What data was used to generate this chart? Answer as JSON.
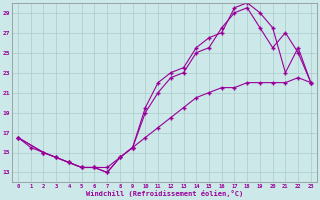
{
  "xlabel": "Windchill (Refroidissement éolien,°C)",
  "bg_color": "#cce8e8",
  "grid_color": "#aacccc",
  "line_color": "#990099",
  "xlim": [
    -0.5,
    23.5
  ],
  "ylim": [
    12,
    30
  ],
  "xticks": [
    0,
    1,
    2,
    3,
    4,
    5,
    6,
    7,
    8,
    9,
    10,
    11,
    12,
    13,
    14,
    15,
    16,
    17,
    18,
    19,
    20,
    21,
    22,
    23
  ],
  "yticks": [
    13,
    15,
    17,
    19,
    21,
    23,
    25,
    27,
    29
  ],
  "line1_x": [
    0,
    1,
    2,
    3,
    4,
    5,
    6,
    7,
    8,
    9,
    10,
    11,
    12,
    13,
    14,
    15,
    16,
    17,
    18,
    19,
    20,
    21,
    22,
    23
  ],
  "line1_y": [
    16.5,
    15.5,
    15.0,
    14.5,
    14.0,
    13.5,
    13.5,
    13.5,
    14.5,
    15.5,
    16.5,
    17.5,
    18.5,
    19.5,
    20.5,
    21.0,
    21.5,
    21.5,
    22.0,
    22.0,
    22.0,
    22.0,
    22.5,
    22.0
  ],
  "line2_x": [
    0,
    2,
    3,
    4,
    5,
    6,
    7,
    8,
    9,
    10,
    11,
    12,
    13,
    14,
    15,
    16,
    17,
    18,
    19,
    20,
    21,
    22,
    23
  ],
  "line2_y": [
    16.5,
    15.0,
    14.5,
    14.0,
    13.5,
    13.5,
    13.0,
    14.5,
    15.5,
    19.5,
    22.0,
    23.0,
    23.5,
    25.5,
    26.5,
    27.0,
    29.5,
    30.0,
    29.0,
    27.5,
    23.0,
    25.5,
    22.0
  ],
  "line3_x": [
    0,
    2,
    3,
    4,
    5,
    6,
    7,
    8,
    9,
    10,
    11,
    12,
    13,
    14,
    15,
    16,
    17,
    18,
    19,
    20,
    21,
    22,
    23
  ],
  "line3_y": [
    16.5,
    15.0,
    14.5,
    14.0,
    13.5,
    13.5,
    13.0,
    14.5,
    15.5,
    19.0,
    21.0,
    22.5,
    23.0,
    25.0,
    25.5,
    27.5,
    29.0,
    29.5,
    27.5,
    25.5,
    27.0,
    25.0,
    22.0
  ]
}
